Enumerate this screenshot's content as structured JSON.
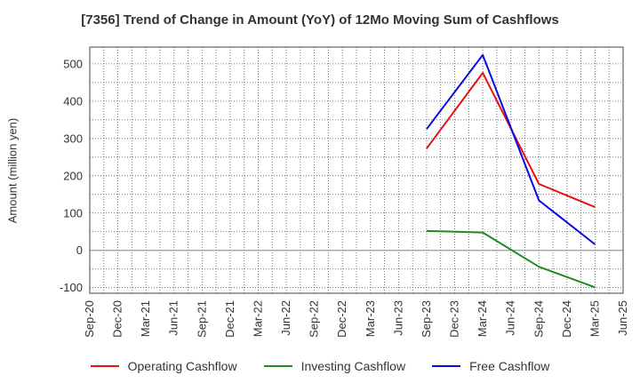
{
  "chart_data": {
    "type": "line",
    "title": "[7356]  Trend of Change in Amount (YoY) of 12Mo Moving Sum of Cashflows",
    "xlabel": "",
    "ylabel": "Amount (million yen)",
    "categories": [
      "Sep-20",
      "Dec-20",
      "Mar-21",
      "Jun-21",
      "Sep-21",
      "Dec-21",
      "Mar-22",
      "Jun-22",
      "Sep-22",
      "Dec-22",
      "Mar-23",
      "Jun-23",
      "Sep-23",
      "Dec-23",
      "Mar-24",
      "Jun-24",
      "Sep-24",
      "Dec-24",
      "Mar-25",
      "Jun-25"
    ],
    "yticks": [
      -100,
      0,
      100,
      200,
      300,
      400,
      500
    ],
    "ylim": [
      -115,
      545
    ],
    "grid": true,
    "legend_position": "bottom",
    "series": [
      {
        "name": "Operating Cashflow",
        "color": "#e8101a",
        "values": [
          null,
          null,
          null,
          null,
          null,
          null,
          null,
          null,
          null,
          null,
          null,
          null,
          273,
          null,
          476,
          null,
          178,
          null,
          116,
          null
        ]
      },
      {
        "name": "Investing Cashflow",
        "color": "#208a20",
        "values": [
          null,
          null,
          null,
          null,
          null,
          null,
          null,
          null,
          null,
          null,
          null,
          null,
          52,
          null,
          48,
          null,
          -44,
          null,
          -99,
          null
        ]
      },
      {
        "name": "Free Cashflow",
        "color": "#0a0ae0",
        "values": [
          null,
          null,
          null,
          null,
          null,
          null,
          null,
          null,
          null,
          null,
          null,
          null,
          325,
          null,
          524,
          null,
          134,
          null,
          16,
          null
        ]
      }
    ]
  }
}
